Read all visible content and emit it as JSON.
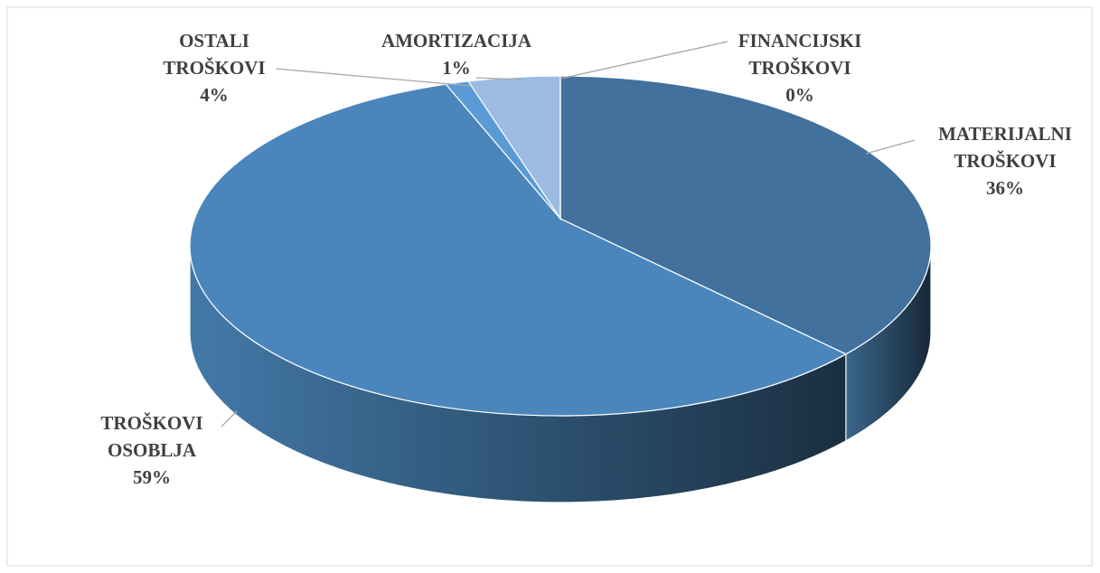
{
  "chart_data": {
    "type": "pie3d",
    "categories": [
      "MATERIJALNI TROŠKOVI",
      "TROŠKOVI OSOBLJA",
      "AMORTIZACIJA",
      "OSTALI TROŠKOVI",
      "FINANCIJSKI TROŠKOVI"
    ],
    "values": [
      36,
      59,
      1,
      4,
      0
    ],
    "value_labels": [
      "36%",
      "59%",
      "1%",
      "4%",
      "0%"
    ],
    "colors": [
      "#41719c",
      "#4a86bb",
      "#5b9bd5",
      "#9dbbe0",
      "#bdd7ee"
    ]
  }
}
